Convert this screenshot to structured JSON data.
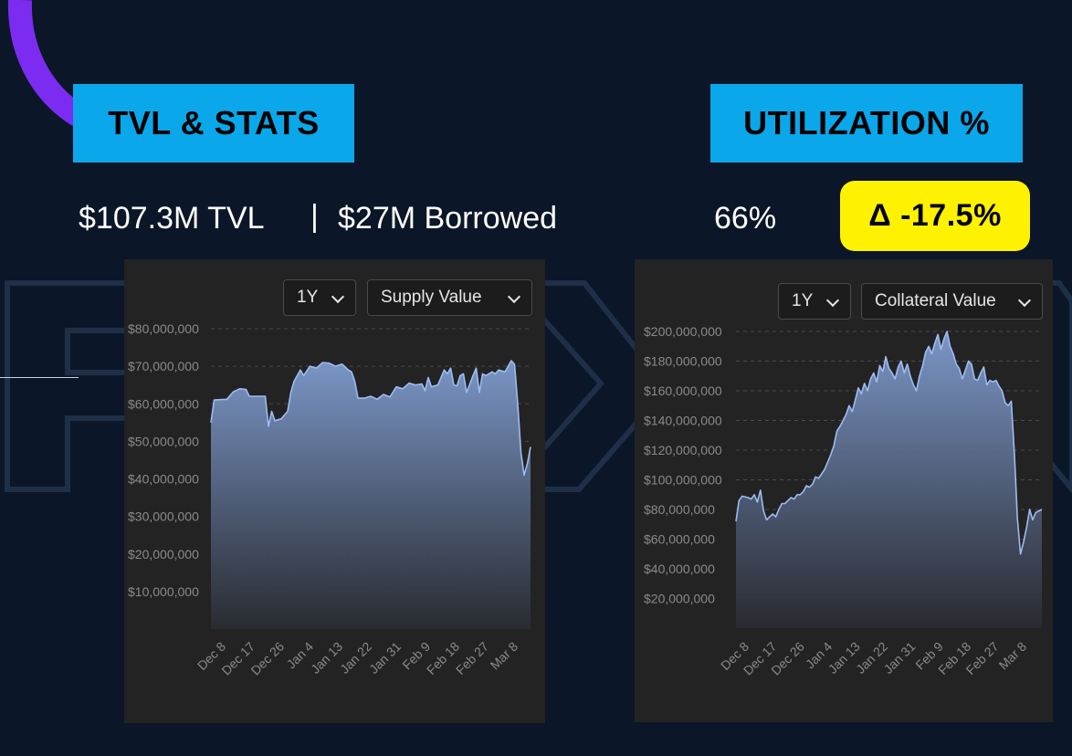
{
  "header": {
    "left_title": "TVL & STATS",
    "right_title": "UTILIZATION %"
  },
  "stats": {
    "tvl": "$107.3M TVL",
    "separator": "|",
    "borrowed": "$27M Borrowed",
    "utilization": "66%",
    "delta": "Δ -17.5%"
  },
  "colors": {
    "background": "#0b1628",
    "title_box": "#0aa7ea",
    "delta_badge": "#fff200",
    "accent_arc": "#7b2cf0",
    "series_line": "#9dbcf2"
  },
  "controls": {
    "left_range": "1Y",
    "left_metric": "Supply Value",
    "right_range": "1Y",
    "right_metric": "Collateral Value"
  },
  "chart_data": [
    {
      "type": "area",
      "title": "",
      "xlabel": "",
      "ylabel": "",
      "grid": true,
      "ylim": [
        0,
        80000000
      ],
      "y_ticks": [
        {
          "value": 80000000,
          "label": "$80,000,000"
        },
        {
          "value": 70000000,
          "label": "$70,000,000"
        },
        {
          "value": 60000000,
          "label": "$60,000,000"
        },
        {
          "value": 50000000,
          "label": "$50,000,000"
        },
        {
          "value": 40000000,
          "label": "$40,000,000"
        },
        {
          "value": 30000000,
          "label": "$30,000,000"
        },
        {
          "value": 20000000,
          "label": "$20,000,000"
        },
        {
          "value": 10000000,
          "label": "$10,000,000"
        }
      ],
      "x_ticks": [
        "Dec 8",
        "Dec 17",
        "Dec 26",
        "Jan 4",
        "Jan 13",
        "Jan 22",
        "Jan 31",
        "Feb 9",
        "Feb 18",
        "Feb 27",
        "Mar 8"
      ],
      "x_range": [
        0,
        100
      ],
      "series": [
        {
          "values": [
            [
              0,
              55000000
            ],
            [
              1,
              61000000
            ],
            [
              5,
              61200000
            ],
            [
              7,
              63200000
            ],
            [
              9,
              64000000
            ],
            [
              11,
              63800000
            ],
            [
              12,
              62000000
            ],
            [
              17,
              62000000
            ],
            [
              18,
              54000000
            ],
            [
              19,
              58000000
            ],
            [
              20,
              55500000
            ],
            [
              22,
              56000000
            ],
            [
              24,
              58000000
            ],
            [
              25,
              63000000
            ],
            [
              26,
              66000000
            ],
            [
              28,
              69000000
            ],
            [
              29,
              67500000
            ],
            [
              31,
              70000000
            ],
            [
              33,
              69500000
            ],
            [
              35,
              71000000
            ],
            [
              37,
              70800000
            ],
            [
              39,
              70000000
            ],
            [
              41,
              70600000
            ],
            [
              43,
              69000000
            ],
            [
              44,
              68500000
            ],
            [
              45,
              66000000
            ],
            [
              46,
              61500000
            ],
            [
              48,
              61500000
            ],
            [
              50,
              62000000
            ],
            [
              52,
              61200000
            ],
            [
              54,
              62500000
            ],
            [
              56,
              61800000
            ],
            [
              58,
              64500000
            ],
            [
              60,
              64000000
            ],
            [
              62,
              65500000
            ],
            [
              64,
              65000000
            ],
            [
              66,
              65300000
            ],
            [
              67,
              63500000
            ],
            [
              68,
              67000000
            ],
            [
              69,
              64500000
            ],
            [
              71,
              65000000
            ],
            [
              72,
              67000000
            ],
            [
              73,
              69000000
            ],
            [
              74,
              68000000
            ],
            [
              75,
              69500000
            ],
            [
              76,
              65000000
            ],
            [
              77,
              64800000
            ],
            [
              78,
              67500000
            ],
            [
              79,
              68000000
            ],
            [
              80,
              63000000
            ],
            [
              82,
              67500000
            ],
            [
              83,
              69500000
            ],
            [
              84,
              63000000
            ],
            [
              85,
              68000000
            ],
            [
              86,
              67500000
            ],
            [
              88,
              68500000
            ],
            [
              89,
              68000000
            ],
            [
              90,
              69000000
            ],
            [
              92,
              68500000
            ],
            [
              93,
              70000000
            ],
            [
              94,
              71500000
            ],
            [
              95,
              70500000
            ],
            [
              96,
              60000000
            ],
            [
              97,
              47000000
            ],
            [
              98,
              41000000
            ],
            [
              99,
              44000000
            ],
            [
              100,
              48500000
            ]
          ]
        }
      ]
    },
    {
      "type": "area",
      "title": "",
      "xlabel": "",
      "ylabel": "",
      "grid": true,
      "ylim": [
        0,
        200000000
      ],
      "y_ticks": [
        {
          "value": 200000000,
          "label": "$200,000,000"
        },
        {
          "value": 180000000,
          "label": "$180,000,000"
        },
        {
          "value": 160000000,
          "label": "$160,000,000"
        },
        {
          "value": 140000000,
          "label": "$140,000,000"
        },
        {
          "value": 120000000,
          "label": "$120,000,000"
        },
        {
          "value": 100000000,
          "label": "$100,000,000"
        },
        {
          "value": 80000000,
          "label": "$80,000,000"
        },
        {
          "value": 60000000,
          "label": "$60,000,000"
        },
        {
          "value": 40000000,
          "label": "$40,000,000"
        },
        {
          "value": 20000000,
          "label": "$20,000,000"
        }
      ],
      "x_ticks": [
        "Dec 8",
        "Dec 17",
        "Dec 26",
        "Jan 4",
        "Jan 13",
        "Jan 22",
        "Jan 31",
        "Feb 9",
        "Feb 18",
        "Feb 27",
        "Mar 8"
      ],
      "x_range": [
        0,
        100
      ],
      "series": [
        {
          "values": [
            [
              0,
              72000000
            ],
            [
              1,
              86000000
            ],
            [
              2,
              89000000
            ],
            [
              4,
              88000000
            ],
            [
              5,
              87000000
            ],
            [
              6,
              90000000
            ],
            [
              7,
              85000000
            ],
            [
              8,
              93000000
            ],
            [
              9,
              79000000
            ],
            [
              10,
              73000000
            ],
            [
              11,
              75000000
            ],
            [
              12,
              77000000
            ],
            [
              13,
              75000000
            ],
            [
              14,
              80000000
            ],
            [
              15,
              84000000
            ],
            [
              16,
              84000000
            ],
            [
              17,
              86000000
            ],
            [
              18,
              88000000
            ],
            [
              19,
              87000000
            ],
            [
              20,
              90000000
            ],
            [
              21,
              90000000
            ],
            [
              22,
              92000000
            ],
            [
              23,
              96000000
            ],
            [
              24,
              95000000
            ],
            [
              25,
              97000000
            ],
            [
              26,
              102000000
            ],
            [
              27,
              101000000
            ],
            [
              28,
              104000000
            ],
            [
              29,
              107000000
            ],
            [
              30,
              112000000
            ],
            [
              31,
              117000000
            ],
            [
              32,
              123000000
            ],
            [
              33,
              133000000
            ],
            [
              34,
              136000000
            ],
            [
              35,
              140000000
            ],
            [
              36,
              144000000
            ],
            [
              37,
              150000000
            ],
            [
              38,
              146000000
            ],
            [
              39,
              154000000
            ],
            [
              40,
              162000000
            ],
            [
              41,
              158000000
            ],
            [
              42,
              165000000
            ],
            [
              43,
              160000000
            ],
            [
              44,
              168000000
            ],
            [
              45,
              172000000
            ],
            [
              46,
              166000000
            ],
            [
              47,
              177000000
            ],
            [
              48,
              173000000
            ],
            [
              49,
              183000000
            ],
            [
              50,
              175000000
            ],
            [
              51,
              172000000
            ],
            [
              52,
              168000000
            ],
            [
              53,
              176000000
            ],
            [
              54,
              180000000
            ],
            [
              55,
              172000000
            ],
            [
              56,
              178000000
            ],
            [
              57,
              170000000
            ],
            [
              58,
              164000000
            ],
            [
              59,
              160000000
            ],
            [
              60,
              170000000
            ],
            [
              61,
              177000000
            ],
            [
              62,
              186000000
            ],
            [
              63,
              190000000
            ],
            [
              64,
              185000000
            ],
            [
              65,
              192000000
            ],
            [
              66,
              198000000
            ],
            [
              67,
              188000000
            ],
            [
              68,
              195000000
            ],
            [
              69,
              200000000
            ],
            [
              70,
              190000000
            ],
            [
              71,
              185000000
            ],
            [
              72,
              178000000
            ],
            [
              73,
              175000000
            ],
            [
              74,
              168000000
            ],
            [
              75,
              174000000
            ],
            [
              76,
              180000000
            ],
            [
              77,
              178000000
            ],
            [
              78,
              168000000
            ],
            [
              79,
              167000000
            ],
            [
              80,
              172000000
            ],
            [
              81,
              176000000
            ],
            [
              82,
              164000000
            ],
            [
              83,
              167000000
            ],
            [
              84,
              166000000
            ],
            [
              85,
              167000000
            ],
            [
              86,
              163000000
            ],
            [
              87,
              160000000
            ],
            [
              88,
              152000000
            ],
            [
              89,
              150000000
            ],
            [
              90,
              153000000
            ],
            [
              91,
              118000000
            ],
            [
              92,
              74000000
            ],
            [
              93,
              50000000
            ],
            [
              94,
              58000000
            ],
            [
              95,
              68000000
            ],
            [
              96,
              80000000
            ],
            [
              97,
              73000000
            ],
            [
              98,
              78000000
            ],
            [
              100,
              80000000
            ]
          ]
        }
      ]
    }
  ]
}
